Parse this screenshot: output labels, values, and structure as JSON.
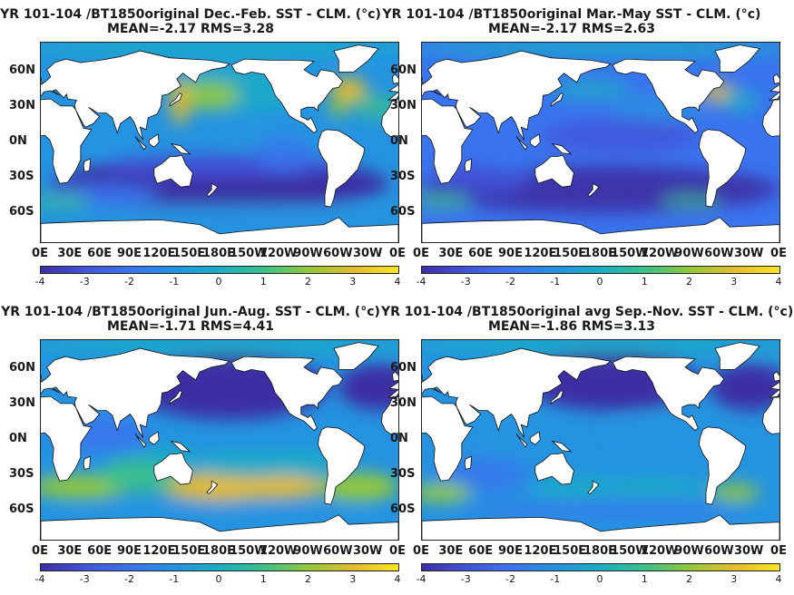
{
  "panels": [
    {
      "line1": "YR 101-104 /BT1850original  Dec.-Feb. SST - CLM. (°c)",
      "line2": "MEAN=-2.17   RMS=3.28",
      "pattern": "djf"
    },
    {
      "line1": "YR 101-104 /BT1850original Mar.-May SST - CLM. (°c)",
      "line2": "MEAN=-2.17   RMS=2.63",
      "pattern": "mam"
    },
    {
      "line1": "YR 101-104 /BT1850original Jun.-Aug. SST - CLM. (°c)",
      "line2": "MEAN=-1.71   RMS=4.41",
      "pattern": "jja"
    },
    {
      "line1": "YR 101-104 /BT1850original avg Sep.-Nov. SST - CLM. (°c)",
      "line2": "MEAN=-1.86   RMS=3.13",
      "pattern": "son"
    }
  ],
  "lat_labels": [
    "60N",
    "30N",
    "0N",
    "30S",
    "60S"
  ],
  "lon_labels": [
    "0E",
    "30E",
    "60E",
    "90E",
    "120E",
    "150E",
    "180E",
    "150W",
    "120W",
    "90W",
    "60W",
    "30W",
    "0E"
  ],
  "colorbar": {
    "ticks": [
      "-4",
      "-3",
      "-2",
      "-1",
      "0",
      "1",
      "2",
      "3",
      "4"
    ],
    "colors": [
      "#3d2fa3",
      "#4254d9",
      "#3a74ee",
      "#2593e0",
      "#19aec4",
      "#3bc189",
      "#93c83a",
      "#e4bb2e",
      "#f8e620"
    ]
  }
}
